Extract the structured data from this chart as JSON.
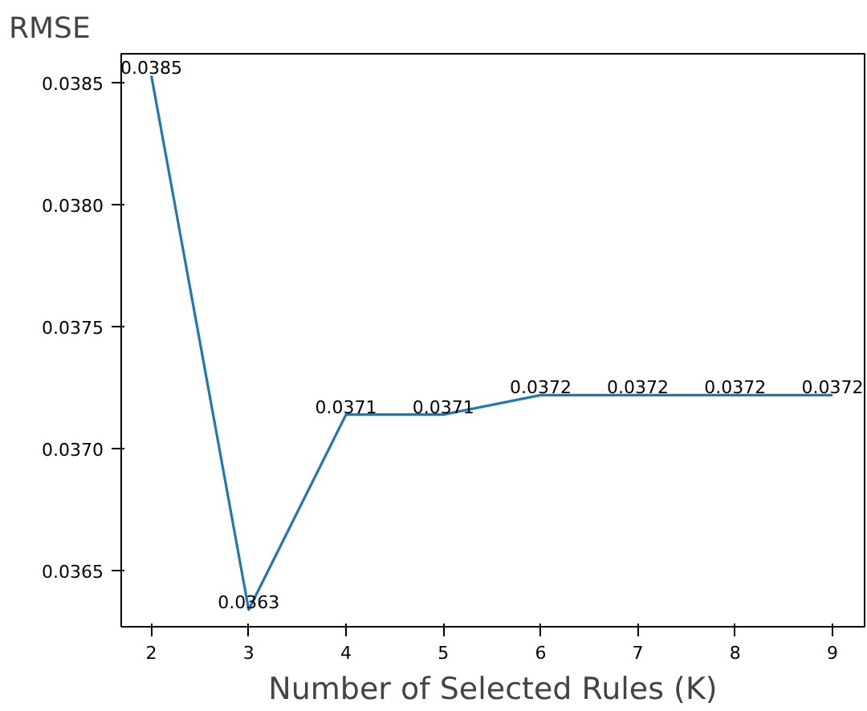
{
  "chart_data": {
    "type": "line",
    "ylabel": "RMSE",
    "xlabel": "Number of Selected Rules (K)",
    "x": [
      2,
      3,
      4,
      5,
      6,
      7,
      8,
      9
    ],
    "series": [
      {
        "color": "#1f77b4",
        "values": [
          0.03853,
          0.03634,
          0.03714,
          0.03714,
          0.03722,
          0.03722,
          0.03722,
          0.03722
        ],
        "value_labels": [
          "0.0385",
          "0.0363",
          "0.0371",
          "0.0371",
          "0.0372",
          "0.0372",
          "0.0372",
          "0.0372"
        ]
      }
    ],
    "xlim": [
      1.69,
      9.33
    ],
    "ylim": [
      0.03627,
      0.03862
    ],
    "xticks": [
      2,
      3,
      4,
      5,
      6,
      7,
      8,
      9
    ],
    "yticks": [
      0.0365,
      {
        "value": 0.037,
        "label": "0.0370"
      },
      0.0375,
      {
        "value": 0.038,
        "label": "0.0380"
      },
      0.0385
    ],
    "grid": false
  }
}
